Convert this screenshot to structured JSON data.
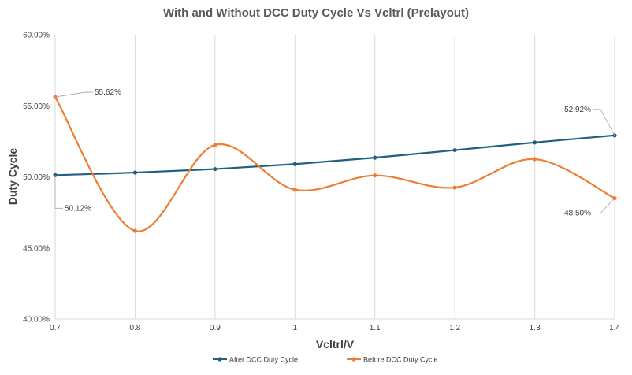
{
  "chart_data": {
    "type": "line",
    "title": "With and Without DCC Duty Cycle Vs Vcltrl (Prelayout)",
    "xlabel": "Vcltrl/V",
    "ylabel": "Duty Cycle",
    "x": [
      0.7,
      0.8,
      0.9,
      1.0,
      1.1,
      1.2,
      1.3,
      1.4
    ],
    "x_tick_labels": [
      "0.7",
      "0.8",
      "0.9",
      "1",
      "1.1",
      "1.2",
      "1.3",
      "1.4"
    ],
    "xlim": [
      0.7,
      1.4
    ],
    "ylim": [
      40.0,
      60.0
    ],
    "y_tick_values": [
      40,
      45,
      50,
      55,
      60
    ],
    "y_tick_labels": [
      "40.00%",
      "45.00%",
      "50.00%",
      "55.00%",
      "60.00%"
    ],
    "grid": "vertical",
    "legend_position": "bottom",
    "series": [
      {
        "name": "After DCC Duty Cycle",
        "color": "#1f5f7f",
        "values": [
          50.12,
          50.3,
          50.55,
          50.9,
          51.35,
          51.88,
          52.42,
          52.92
        ],
        "labels": [
          {
            "index": 0,
            "text": "50.12%"
          },
          {
            "index": 7,
            "text": "52.92%"
          }
        ]
      },
      {
        "name": "Before DCC Duty Cycle",
        "color": "#ed7d31",
        "values": [
          55.62,
          46.2,
          52.25,
          49.1,
          50.1,
          49.25,
          51.25,
          48.5
        ],
        "labels": [
          {
            "index": 0,
            "text": "55.62%"
          },
          {
            "index": 7,
            "text": "48.50%"
          }
        ]
      }
    ]
  }
}
